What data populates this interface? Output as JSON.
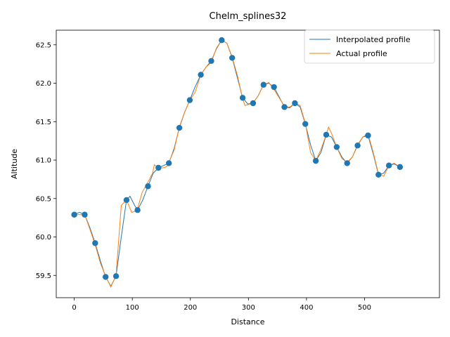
{
  "chart_data": {
    "type": "line",
    "title": "Chelm_splines32",
    "xlabel": "Distance",
    "ylabel": "Altitude",
    "xlim": [
      -31,
      629
    ],
    "ylim": [
      59.21,
      62.69
    ],
    "xticks": [
      0,
      100,
      200,
      300,
      400,
      500
    ],
    "yticks": [
      59.5,
      60.0,
      60.5,
      61.0,
      61.5,
      62.0,
      62.5
    ],
    "ytick_labels": [
      "59.5",
      "60.0",
      "60.5",
      "61.0",
      "61.5",
      "62.0",
      "62.5"
    ],
    "grid": false,
    "legend_position": "top-right",
    "colors": {
      "interpolated": "#1f77b4",
      "actual": "#ff7f0e",
      "points": "#1f77b4"
    },
    "series": [
      {
        "name": "Interpolated profile",
        "x": [
          0,
          9,
          18,
          27,
          36,
          45,
          54,
          63,
          72,
          81,
          90,
          96,
          104,
          109,
          118,
          127,
          136,
          145,
          154,
          163,
          172,
          181,
          190,
          199,
          208,
          218,
          227,
          236,
          245,
          254,
          263,
          272,
          281,
          290,
          299,
          308,
          317,
          326,
          335,
          344,
          353,
          362,
          371,
          380,
          389,
          398,
          407,
          416,
          425,
          434,
          443,
          452,
          461,
          470,
          479,
          488,
          497,
          506,
          515,
          524,
          533,
          542,
          551,
          561
        ],
        "y": [
          60.29,
          60.32,
          60.29,
          60.12,
          59.92,
          59.69,
          59.48,
          59.36,
          59.49,
          60.0,
          60.48,
          60.53,
          60.41,
          60.35,
          60.48,
          60.66,
          60.83,
          60.9,
          60.93,
          60.96,
          61.15,
          61.42,
          61.62,
          61.78,
          61.95,
          62.11,
          62.21,
          62.29,
          62.45,
          62.56,
          62.52,
          62.33,
          62.07,
          61.81,
          61.73,
          61.74,
          61.84,
          61.98,
          62.0,
          61.95,
          61.82,
          61.69,
          61.68,
          61.74,
          61.69,
          61.47,
          61.2,
          60.99,
          61.1,
          61.33,
          61.3,
          61.17,
          61.04,
          60.96,
          61.04,
          61.19,
          61.3,
          61.32,
          61.08,
          60.81,
          60.83,
          60.93,
          60.95,
          60.91
        ]
      },
      {
        "name": "Actual profile",
        "x": [
          0,
          9,
          18,
          27,
          36,
          45,
          54,
          63,
          72,
          81,
          90,
          99,
          108,
          117,
          126,
          135,
          138,
          145,
          154,
          160,
          172,
          181,
          190,
          199,
          208,
          218,
          227,
          236,
          245,
          254,
          263,
          272,
          281,
          290,
          294,
          308,
          317,
          326,
          335,
          344,
          353,
          362,
          371,
          380,
          389,
          398,
          407,
          416,
          425,
          434,
          438,
          443,
          452,
          461,
          470,
          479,
          488,
          497,
          506,
          515,
          524,
          533,
          542,
          551,
          561
        ],
        "y": [
          60.29,
          60.29,
          60.29,
          60.1,
          59.9,
          59.66,
          59.49,
          59.35,
          59.5,
          60.41,
          60.48,
          60.32,
          60.34,
          60.58,
          60.7,
          60.83,
          60.94,
          60.9,
          60.9,
          60.92,
          61.13,
          61.43,
          61.62,
          61.78,
          61.88,
          62.11,
          62.21,
          62.27,
          62.46,
          62.56,
          62.52,
          62.34,
          62.1,
          61.8,
          61.71,
          61.74,
          61.84,
          61.98,
          62.01,
          61.92,
          61.81,
          61.7,
          61.69,
          61.74,
          61.71,
          61.48,
          61.1,
          60.99,
          61.14,
          61.33,
          61.43,
          61.35,
          61.17,
          61.02,
          60.97,
          61.04,
          61.2,
          61.3,
          61.34,
          61.1,
          60.82,
          60.79,
          60.93,
          60.96,
          60.91
        ]
      },
      {
        "name": "",
        "type": "scatter",
        "x": [
          0,
          18,
          36,
          54,
          72,
          90,
          109,
          127,
          145,
          163,
          181,
          199,
          218,
          236,
          254,
          272,
          290,
          308,
          326,
          344,
          362,
          380,
          398,
          416,
          434,
          452,
          470,
          488,
          506,
          524,
          542,
          561
        ],
        "y": [
          60.29,
          60.29,
          59.92,
          59.48,
          59.49,
          60.48,
          60.35,
          60.66,
          60.9,
          60.96,
          61.42,
          61.78,
          62.11,
          62.29,
          62.56,
          62.33,
          61.81,
          61.74,
          61.98,
          61.95,
          61.69,
          61.74,
          61.47,
          60.99,
          61.33,
          61.17,
          60.96,
          61.19,
          61.32,
          60.81,
          60.93,
          60.91
        ]
      }
    ]
  }
}
